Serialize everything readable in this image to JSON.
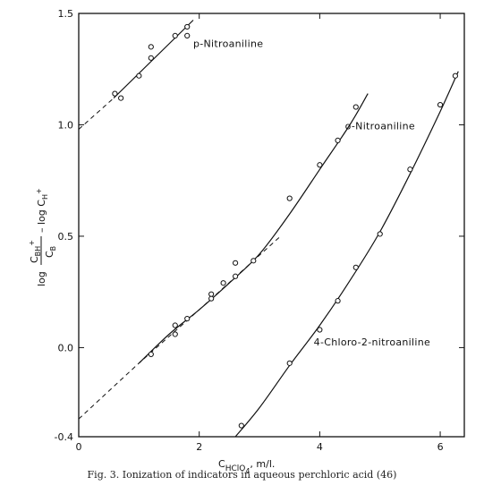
{
  "chart_data": {
    "type": "scatter",
    "caption": "Fig. 3. Ionization of indicators in aqueous perchloric acid (46)",
    "xlabel_parts": {
      "main": "C",
      "sub": "HClO",
      "sub2": "4",
      "tail": ", m/l."
    },
    "ylabel_parts": {
      "log1": "log",
      "num": "C",
      "num_sub": "BH",
      "num_sup": "+",
      "den": "C",
      "den_sub": "B",
      "mid": "– log C",
      "mid_sub": "H",
      "mid_sup": "+"
    },
    "xlim": [
      0,
      6.4
    ],
    "ylim": [
      -0.4,
      1.5
    ],
    "x_ticks": [
      0,
      2,
      4,
      6
    ],
    "x_tick_labels": [
      "0",
      "2",
      "4",
      "6"
    ],
    "y_ticks": [
      -0.4,
      0.0,
      0.5,
      1.0,
      1.5
    ],
    "y_tick_labels": [
      "-0.4",
      "0.0",
      "0.5",
      "1.0",
      "1.5"
    ],
    "grid": false,
    "series": [
      {
        "name": "p-Nitroaniline",
        "points": [
          [
            0.6,
            1.14
          ],
          [
            0.7,
            1.12
          ],
          [
            1.0,
            1.22
          ],
          [
            1.2,
            1.3
          ],
          [
            1.2,
            1.35
          ],
          [
            1.6,
            1.4
          ],
          [
            1.8,
            1.44
          ],
          [
            1.8,
            1.4
          ]
        ],
        "fit_solid": [
          [
            0.58,
            1.12
          ],
          [
            1.9,
            1.47
          ]
        ],
        "fit_dashed": [
          [
            0.0,
            0.98
          ],
          [
            0.58,
            1.12
          ]
        ]
      },
      {
        "name": "o-Nitroaniline",
        "points": [
          [
            1.2,
            -0.03
          ],
          [
            1.6,
            0.06
          ],
          [
            1.6,
            0.1
          ],
          [
            1.8,
            0.13
          ],
          [
            2.2,
            0.22
          ],
          [
            2.2,
            0.24
          ],
          [
            2.4,
            0.29
          ],
          [
            2.6,
            0.32
          ],
          [
            2.6,
            0.38
          ],
          [
            2.9,
            0.39
          ],
          [
            3.5,
            0.67
          ],
          [
            4.0,
            0.82
          ],
          [
            4.3,
            0.93
          ],
          [
            4.6,
            1.08
          ]
        ],
        "fit_solid": [
          [
            1.0,
            -0.07
          ],
          [
            1.5,
            0.06
          ],
          [
            2.0,
            0.17
          ],
          [
            2.5,
            0.29
          ],
          [
            3.0,
            0.42
          ],
          [
            3.5,
            0.6
          ],
          [
            4.0,
            0.8
          ],
          [
            4.5,
            1.0
          ],
          [
            4.8,
            1.14
          ]
        ],
        "fit_dashed": [
          [
            0.0,
            -0.32
          ],
          [
            1.0,
            -0.07
          ],
          [
            2.0,
            0.17
          ],
          [
            3.35,
            0.5
          ]
        ]
      },
      {
        "name": "4-Chloro-2-nitroaniline",
        "points": [
          [
            2.7,
            -0.35
          ],
          [
            3.5,
            -0.07
          ],
          [
            4.0,
            0.08
          ],
          [
            4.3,
            0.21
          ],
          [
            4.6,
            0.36
          ],
          [
            5.0,
            0.51
          ],
          [
            5.5,
            0.8
          ],
          [
            6.0,
            1.09
          ],
          [
            6.25,
            1.22
          ]
        ],
        "fit_solid": [
          [
            2.6,
            -0.4
          ],
          [
            3.0,
            -0.27
          ],
          [
            3.5,
            -0.08
          ],
          [
            4.0,
            0.1
          ],
          [
            4.5,
            0.3
          ],
          [
            5.0,
            0.52
          ],
          [
            5.5,
            0.78
          ],
          [
            6.0,
            1.06
          ],
          [
            6.3,
            1.24
          ]
        ]
      }
    ],
    "annotations": [
      {
        "text": "p-Nitroaniline",
        "x": 1.9,
        "y": 1.35
      },
      {
        "text": "o-Nitroaniline",
        "x": 4.42,
        "y": 0.98
      },
      {
        "text": "4-Chloro-2-nitroaniline",
        "x": 3.9,
        "y": 0.01
      }
    ]
  }
}
